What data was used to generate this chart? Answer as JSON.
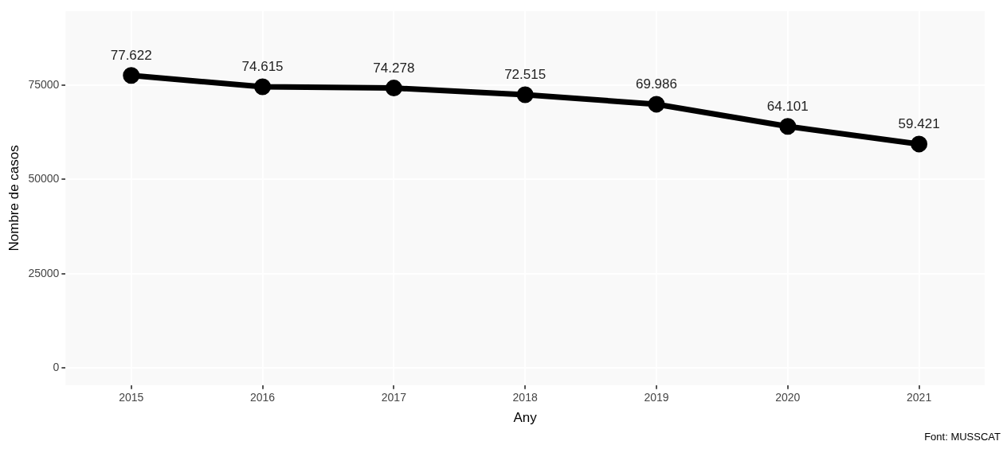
{
  "chart_data": {
    "type": "line",
    "xlabel": "Any",
    "ylabel": "Nombre de casos",
    "annotations": [
      "Font: MUSSCAT"
    ],
    "categories": [
      "2015",
      "2016",
      "2017",
      "2018",
      "2019",
      "2020",
      "2021"
    ],
    "series": [
      {
        "color": "#000000",
        "values": [
          77622,
          74615,
          74278,
          72515,
          69986,
          64101,
          59421
        ],
        "value_labels": [
          "77.622",
          "74.615",
          "74.278",
          "72.515",
          "69.986",
          "64.101",
          "59.421"
        ]
      }
    ],
    "ylim": [
      -4600,
      94700
    ],
    "yticks": [
      0,
      25000,
      50000,
      75000
    ],
    "grid": true,
    "legend": false,
    "marker": "circle",
    "line_style": "solid"
  }
}
